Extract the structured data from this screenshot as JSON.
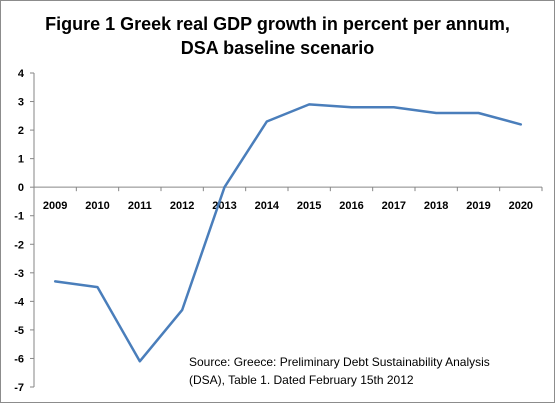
{
  "chart_data": {
    "type": "line",
    "title_line1": "Figure 1 Greek real GDP growth in percent per annum,",
    "title_line2": "DSA baseline scenario",
    "xlabel": "",
    "ylabel": "",
    "categories": [
      "2009",
      "2010",
      "2011",
      "2012",
      "2013",
      "2014",
      "2015",
      "2016",
      "2017",
      "2018",
      "2019",
      "2020"
    ],
    "series": [
      {
        "values": [
          -3.3,
          -3.5,
          -6.1,
          -4.3,
          0.0,
          2.3,
          2.9,
          2.8,
          2.8,
          2.6,
          2.6,
          2.2
        ]
      }
    ],
    "ylim": [
      -7,
      4
    ],
    "yticks": [
      4,
      3,
      2,
      1,
      0,
      -1,
      -2,
      -3,
      -4,
      -5,
      -6,
      -7
    ],
    "ytick_labels": [
      "4",
      "3",
      "2",
      "1",
      "0",
      "-1",
      "-2",
      "-3",
      "-4",
      "-5",
      "-6",
      "-7"
    ],
    "grid": false,
    "line_color": "#4a7ebb",
    "source_line1": "Source:  Greece: Preliminary  Debt Sustainability  Analysis",
    "source_line2": "(DSA), Table 1. Dated February 15th 2012"
  }
}
